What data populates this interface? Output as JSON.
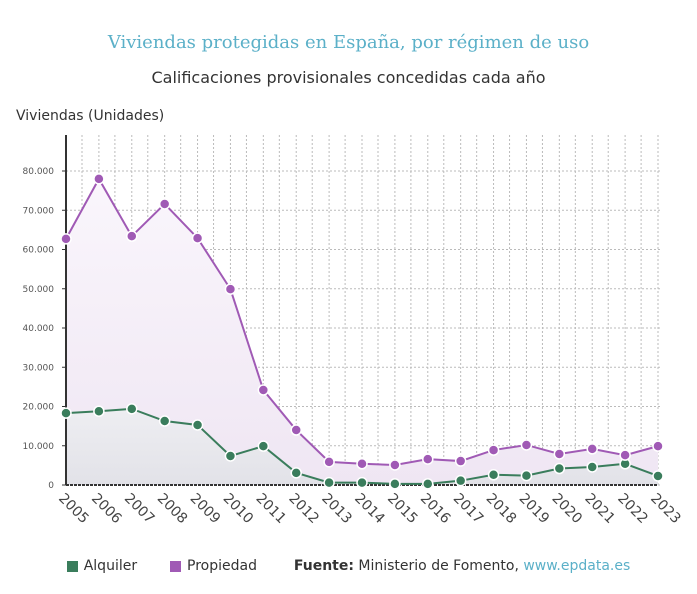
{
  "chart_data": {
    "type": "area",
    "title": "Viviendas protegidas en España, por régimen de uso",
    "subtitle": "Calificaciones provisionales concedidas cada año",
    "ylabel": "Viviendas (Unidades)",
    "xlabel": "",
    "categories": [
      "2005",
      "2006",
      "2007",
      "2008",
      "2009",
      "2010",
      "2011",
      "2012",
      "2013",
      "2014",
      "2015",
      "2016",
      "2017",
      "2018",
      "2019",
      "2020",
      "2021",
      "2022",
      "2023"
    ],
    "ylim": [
      0,
      90000
    ],
    "yticks": [
      0,
      10000,
      20000,
      30000,
      40000,
      50000,
      60000,
      70000,
      80000
    ],
    "ytick_labels": [
      "0",
      "10.000",
      "20.000",
      "30.000",
      "40.000",
      "50.000",
      "60.000",
      "70.000",
      "80.000"
    ],
    "grid": true,
    "legend": "bottom",
    "series": [
      {
        "name": "Alquiler",
        "color": "#3a7d5c",
        "values": [
          18300,
          18800,
          19400,
          16300,
          15300,
          7400,
          9900,
          3100,
          600,
          600,
          300,
          300,
          1100,
          2600,
          2400,
          4200,
          4600,
          5400,
          2300
        ]
      },
      {
        "name": "Propiedad",
        "color": "#a05ab5",
        "values": [
          62700,
          78000,
          63400,
          71600,
          62900,
          49900,
          24200,
          14000,
          5900,
          5400,
          5100,
          6600,
          6100,
          8900,
          10200,
          7900,
          9200,
          7600,
          9900
        ]
      }
    ]
  },
  "source": {
    "label": "Fuente:",
    "text": "Ministerio de Fomento,",
    "link": "www.epdata.es"
  }
}
